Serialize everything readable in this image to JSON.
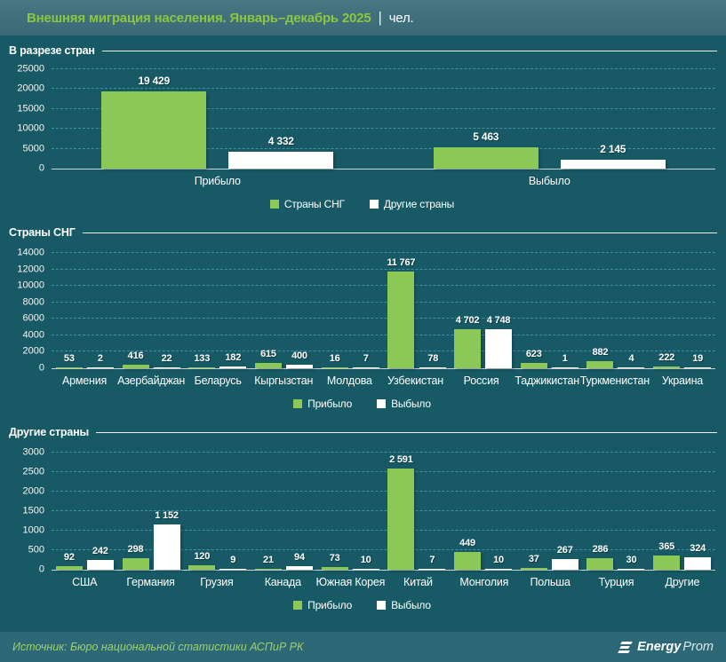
{
  "header": {
    "title": "Внешняя миграция населения. Январь–декабрь 2025",
    "separator": "|",
    "unit": "чел."
  },
  "colors": {
    "green": "#8cc855",
    "white": "#ffffff",
    "title_green": "#8cc63f",
    "background": "#175a65",
    "grid": "#4090a6",
    "footer_bg": "#2c6875"
  },
  "chart_data": [
    {
      "type": "bar",
      "section_title": "В разрезе стран",
      "categories": [
        "Прибыло",
        "Выбыло"
      ],
      "series": [
        {
          "name": "Страны СНГ",
          "color_key": "green",
          "values": [
            19429,
            5463
          ]
        },
        {
          "name": "Другие страны",
          "color_key": "white",
          "values": [
            4332,
            2145
          ]
        }
      ],
      "ylim": [
        0,
        25000
      ],
      "ytick_step": 5000,
      "grid": "dashed",
      "legend_position": "bottom"
    },
    {
      "type": "bar",
      "section_title": "Страны СНГ",
      "categories": [
        "Армения",
        "Азербайджан",
        "Беларусь",
        "Кыргызстан",
        "Молдова",
        "Узбекистан",
        "Россия",
        "Таджикистан",
        "Туркменистан",
        "Украина"
      ],
      "series": [
        {
          "name": "Прибыло",
          "color_key": "green",
          "values": [
            53,
            416,
            133,
            615,
            16,
            11767,
            4702,
            623,
            882,
            222
          ]
        },
        {
          "name": "Выбыло",
          "color_key": "white",
          "values": [
            2,
            22,
            182,
            400,
            7,
            78,
            4748,
            1,
            4,
            19
          ]
        }
      ],
      "ylim": [
        0,
        14000
      ],
      "ytick_step": 2000,
      "grid": "dashed",
      "legend_position": "bottom"
    },
    {
      "type": "bar",
      "section_title": "Другие страны",
      "categories": [
        "США",
        "Германия",
        "Грузия",
        "Канада",
        "Южная Корея",
        "Китай",
        "Монголия",
        "Польша",
        "Турция",
        "Другие"
      ],
      "series": [
        {
          "name": "Прибыло",
          "color_key": "green",
          "values": [
            92,
            298,
            120,
            21,
            73,
            2591,
            449,
            37,
            286,
            365
          ]
        },
        {
          "name": "Выбыло",
          "color_key": "white",
          "values": [
            242,
            1152,
            9,
            94,
            10,
            7,
            10,
            267,
            30,
            324
          ]
        }
      ],
      "ylim": [
        0,
        3000
      ],
      "ytick_step": 500,
      "grid": "dashed",
      "legend_position": "bottom"
    }
  ],
  "footer": {
    "source": "Источник: Бюро национальной статистики АСПиР РК",
    "logo": {
      "bold": "Energy",
      "light": "Prom"
    }
  }
}
